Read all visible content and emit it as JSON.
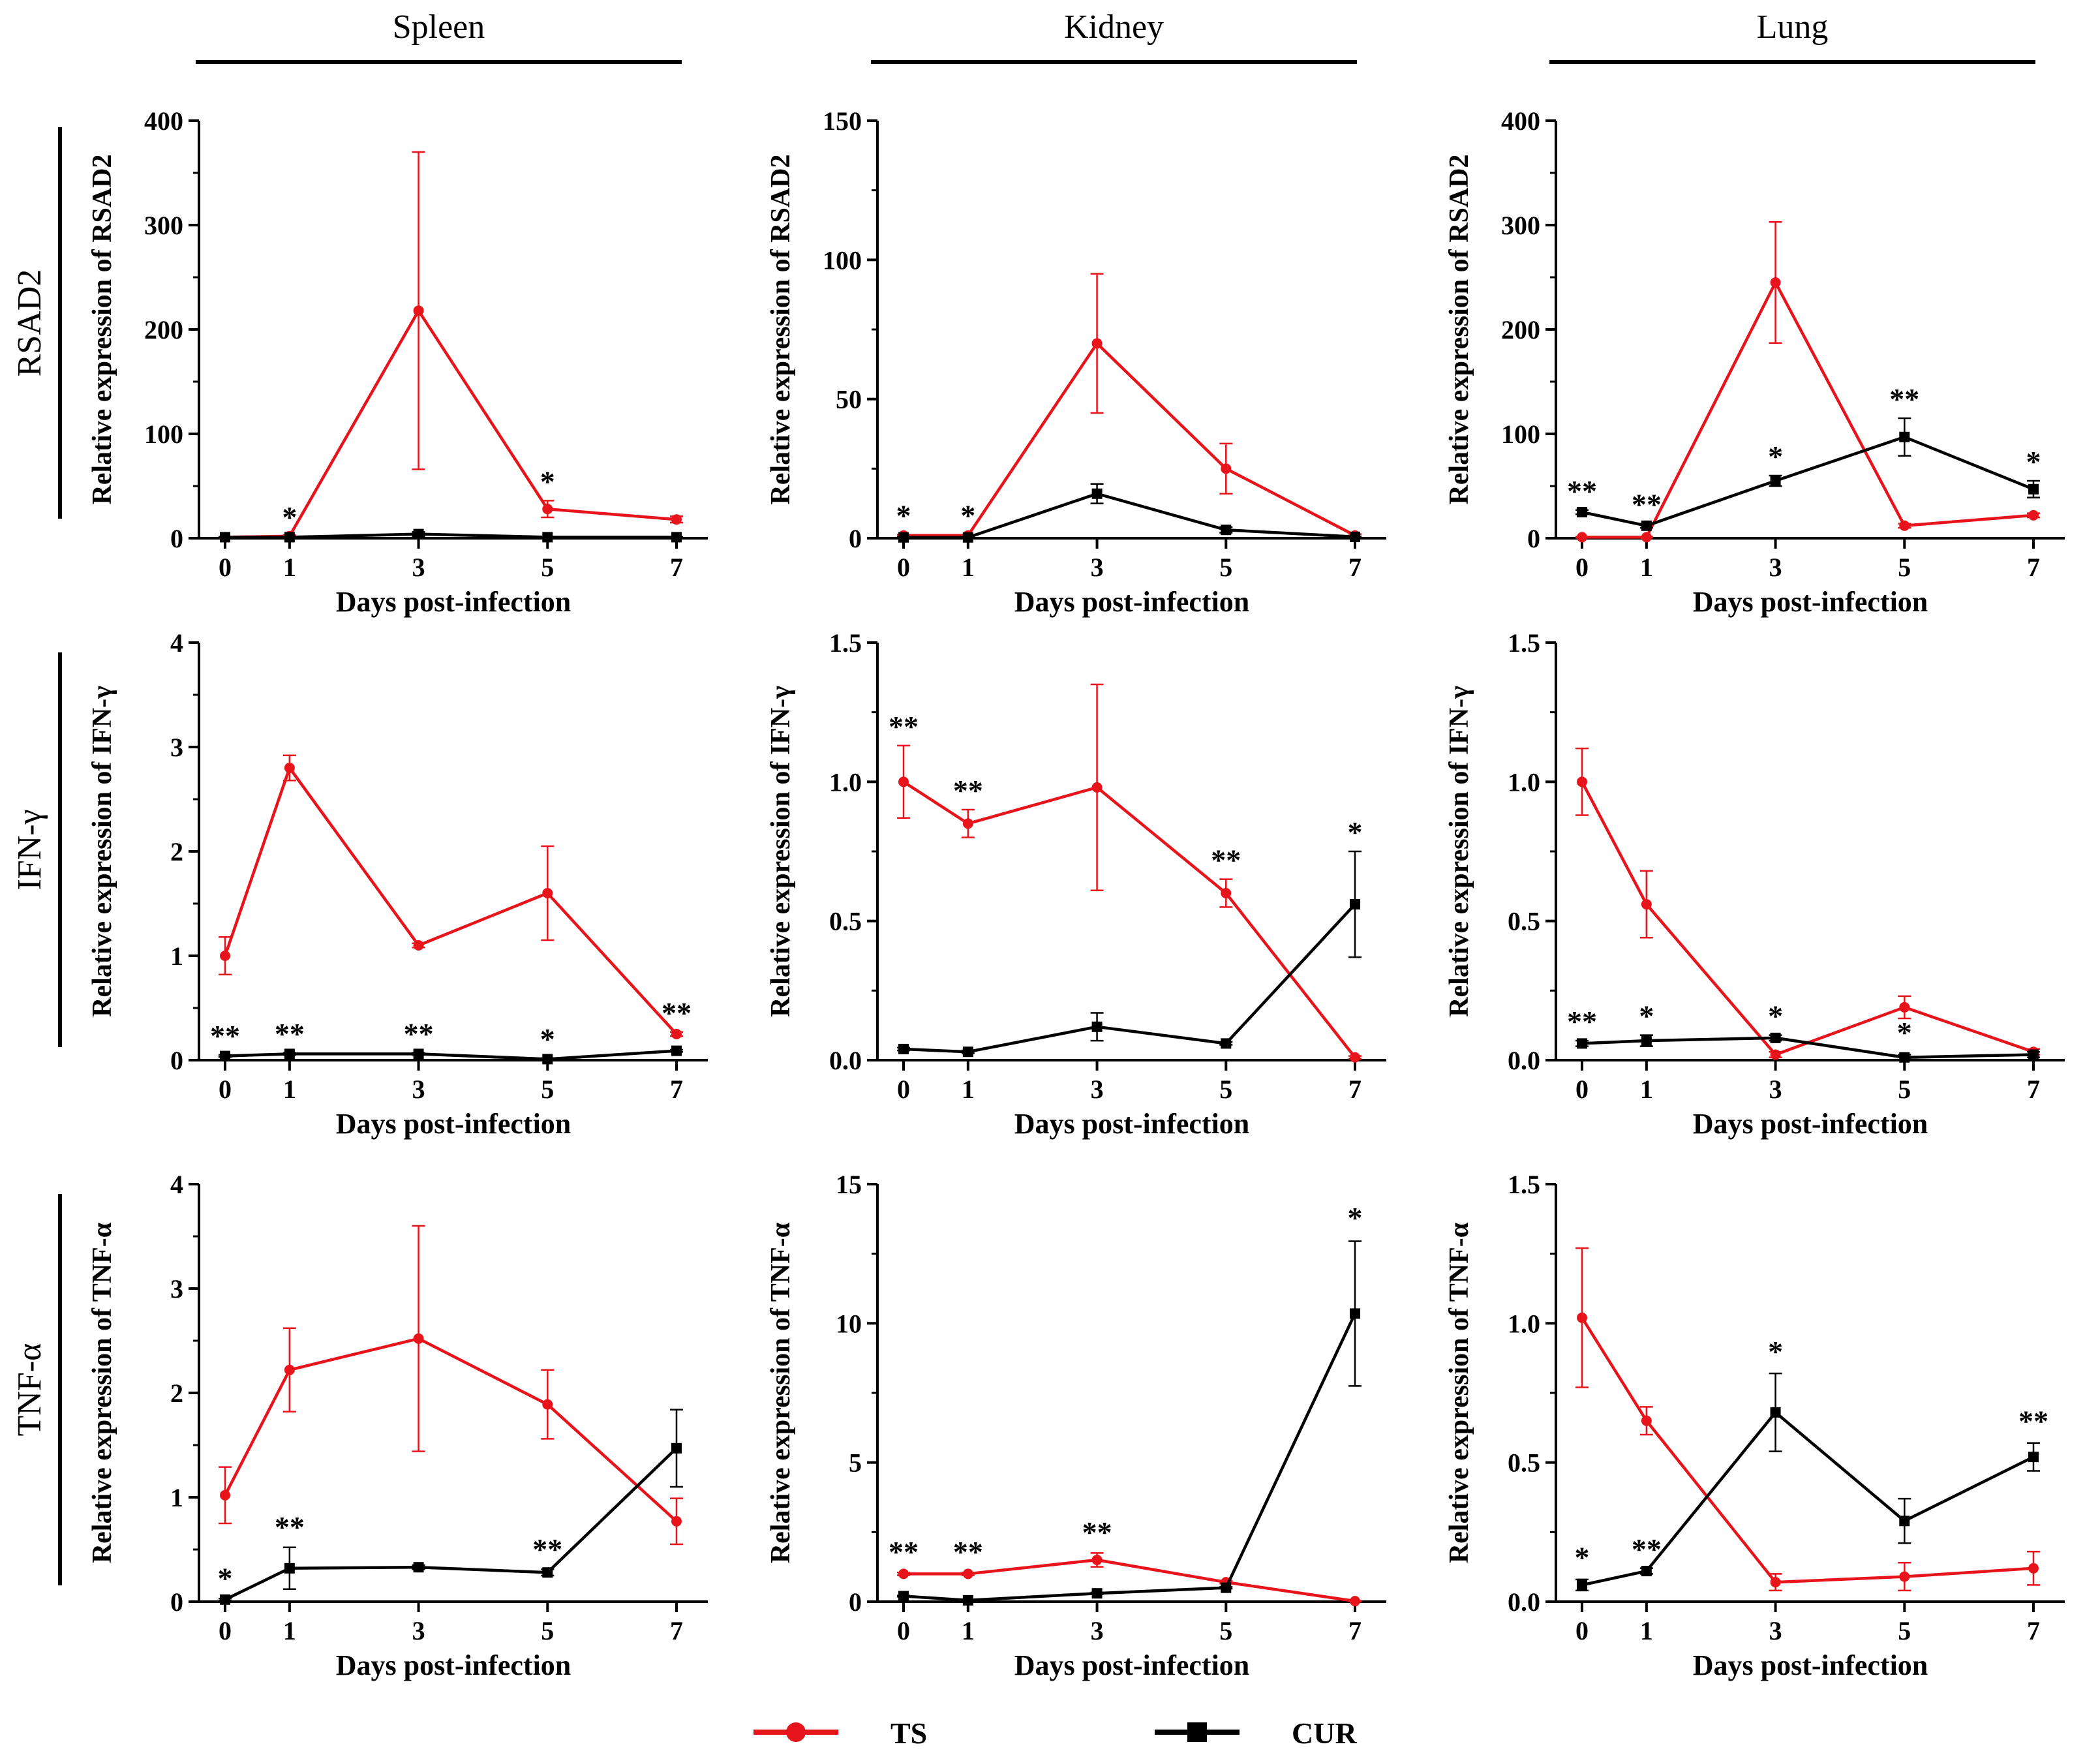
{
  "figure": {
    "columns": [
      {
        "key": "spleen",
        "label": "Spleen"
      },
      {
        "key": "kidney",
        "label": "Kidney"
      },
      {
        "key": "lung",
        "label": "Lung"
      }
    ],
    "rows": [
      {
        "key": "rsad2",
        "label": "RSAD2"
      },
      {
        "key": "ifng",
        "label": "IFN-γ"
      },
      {
        "key": "tnfa",
        "label": "TNF-α"
      }
    ],
    "x_label": "Days post-infection",
    "legend": [
      {
        "name": "TS",
        "color": "#e8141b",
        "marker": "circle"
      },
      {
        "name": "CUR",
        "color": "#000000",
        "marker": "square"
      }
    ]
  },
  "chart_data": [
    {
      "type": "line",
      "panel": "Spleen / RSAD2",
      "xlabel": "Days post-infection",
      "ylabel": "Relative expression of RSAD2",
      "x": [
        0,
        1,
        3,
        5,
        7
      ],
      "ylim": [
        0,
        400
      ],
      "yticks": [
        "0",
        "100",
        "200",
        "300",
        "400"
      ],
      "series": [
        {
          "name": "TS",
          "values": [
            1,
            2,
            218,
            28,
            18
          ],
          "errors": [
            0.5,
            1,
            152,
            8,
            3
          ]
        },
        {
          "name": "CUR",
          "values": [
            1,
            1,
            4,
            1,
            1
          ],
          "errors": [
            0.3,
            0.3,
            2,
            0.5,
            0.3
          ]
        }
      ],
      "annotations": [
        {
          "x": 1,
          "y": 2,
          "text": "*"
        },
        {
          "x": 5,
          "y": 36,
          "text": "*"
        }
      ]
    },
    {
      "type": "line",
      "panel": "Kidney / RSAD2",
      "xlabel": "Days post-infection",
      "ylabel": "Relative expression of RSAD2",
      "x": [
        0,
        1,
        3,
        5,
        7
      ],
      "ylim": [
        0,
        150
      ],
      "yticks": [
        "0",
        "50",
        "100",
        "150"
      ],
      "series": [
        {
          "name": "TS",
          "values": [
            1,
            1,
            70,
            25,
            1
          ],
          "errors": [
            0.3,
            0.3,
            25,
            9,
            0.5
          ]
        },
        {
          "name": "CUR",
          "values": [
            0.3,
            0.3,
            16,
            3,
            0.5
          ],
          "errors": [
            0.1,
            0.1,
            3.5,
            1,
            0.2
          ]
        }
      ],
      "annotations": [
        {
          "x": 0,
          "y": 1.3,
          "text": "*"
        },
        {
          "x": 1,
          "y": 1.3,
          "text": "*"
        }
      ]
    },
    {
      "type": "line",
      "panel": "Lung / RSAD2",
      "xlabel": "Days post-infection",
      "ylabel": "Relative expression of RSAD2",
      "x": [
        0,
        1,
        3,
        5,
        7
      ],
      "ylim": [
        0,
        400
      ],
      "yticks": [
        "0",
        "100",
        "200",
        "300",
        "400"
      ],
      "series": [
        {
          "name": "TS",
          "values": [
            1,
            1,
            245,
            12,
            22
          ],
          "errors": [
            0.5,
            0.5,
            58,
            2,
            2
          ]
        },
        {
          "name": "CUR",
          "values": [
            25,
            12,
            55,
            97,
            47
          ],
          "errors": [
            2,
            2,
            5,
            18,
            8
          ]
        }
      ],
      "annotations": [
        {
          "x": 0,
          "y": 27,
          "text": "**"
        },
        {
          "x": 1,
          "y": 14,
          "text": "**"
        },
        {
          "x": 3,
          "y": 60,
          "text": "*"
        },
        {
          "x": 5,
          "y": 115,
          "text": "**"
        },
        {
          "x": 7,
          "y": 55,
          "text": "*"
        }
      ]
    },
    {
      "type": "line",
      "panel": "Spleen / IFN-γ",
      "xlabel": "Days post-infection",
      "ylabel": "Relative expression of IFN-γ",
      "x": [
        0,
        1,
        3,
        5,
        7
      ],
      "ylim": [
        0,
        4
      ],
      "yticks": [
        "0",
        "1",
        "2",
        "3",
        "4"
      ],
      "series": [
        {
          "name": "TS",
          "values": [
            1.0,
            2.8,
            1.1,
            1.6,
            0.25
          ],
          "errors": [
            0.18,
            0.12,
            0.02,
            0.45,
            0.02
          ]
        },
        {
          "name": "CUR",
          "values": [
            0.04,
            0.06,
            0.06,
            0.01,
            0.09
          ],
          "errors": [
            0.01,
            0.01,
            0.01,
            0.01,
            0.01
          ]
        }
      ],
      "annotations": [
        {
          "x": 0,
          "y": 0.05,
          "text": "**"
        },
        {
          "x": 1,
          "y": 0.07,
          "text": "**"
        },
        {
          "x": 3,
          "y": 0.07,
          "text": "**"
        },
        {
          "x": 5,
          "y": 0.02,
          "text": "*"
        },
        {
          "x": 7,
          "y": 0.27,
          "text": "**"
        }
      ]
    },
    {
      "type": "line",
      "panel": "Kidney / IFN-γ",
      "xlabel": "Days post-infection",
      "ylabel": "Relative expression of IFN-γ",
      "x": [
        0,
        1,
        3,
        5,
        7
      ],
      "ylim": [
        0,
        1.5
      ],
      "yticks": [
        "0.0",
        "0.5",
        "1.0",
        "1.5"
      ],
      "series": [
        {
          "name": "TS",
          "values": [
            1.0,
            0.85,
            0.98,
            0.6,
            0.01
          ],
          "errors": [
            0.13,
            0.05,
            0.37,
            0.05,
            0.005
          ]
        },
        {
          "name": "CUR",
          "values": [
            0.04,
            0.03,
            0.12,
            0.06,
            0.56
          ],
          "errors": [
            0.005,
            0.005,
            0.05,
            0.005,
            0.19
          ]
        }
      ],
      "annotations": [
        {
          "x": 0,
          "y": 1.13,
          "text": "**"
        },
        {
          "x": 1,
          "y": 0.9,
          "text": "**"
        },
        {
          "x": 5,
          "y": 0.65,
          "text": "**"
        },
        {
          "x": 7,
          "y": 0.75,
          "text": "*"
        }
      ]
    },
    {
      "type": "line",
      "panel": "Lung / IFN-γ",
      "xlabel": "Days post-infection",
      "ylabel": "Relative expression of IFN-γ",
      "x": [
        0,
        1,
        3,
        5,
        7
      ],
      "ylim": [
        0,
        1.5
      ],
      "yticks": [
        "0.0",
        "0.5",
        "1.0",
        "1.5"
      ],
      "series": [
        {
          "name": "TS",
          "values": [
            1.0,
            0.56,
            0.02,
            0.19,
            0.03
          ],
          "errors": [
            0.12,
            0.12,
            0.01,
            0.04,
            0.01
          ]
        },
        {
          "name": "CUR",
          "values": [
            0.06,
            0.07,
            0.08,
            0.01,
            0.02
          ],
          "errors": [
            0.01,
            0.02,
            0.01,
            0.01,
            0.01
          ]
        }
      ],
      "annotations": [
        {
          "x": 0,
          "y": 0.07,
          "text": "**"
        },
        {
          "x": 1,
          "y": 0.09,
          "text": "*"
        },
        {
          "x": 3,
          "y": 0.09,
          "text": "*"
        },
        {
          "x": 5,
          "y": 0.03,
          "text": "*"
        }
      ]
    },
    {
      "type": "line",
      "panel": "Spleen / TNF-α",
      "xlabel": "Days post-infection",
      "ylabel": "Relative expression of TNF-α",
      "x": [
        0,
        1,
        3,
        5,
        7
      ],
      "ylim": [
        0,
        4
      ],
      "yticks": [
        "0",
        "1",
        "2",
        "3",
        "4"
      ],
      "series": [
        {
          "name": "TS",
          "values": [
            1.02,
            2.22,
            2.52,
            1.89,
            0.77
          ],
          "errors": [
            0.27,
            0.4,
            1.08,
            0.33,
            0.22
          ]
        },
        {
          "name": "CUR",
          "values": [
            0.02,
            0.32,
            0.33,
            0.28,
            1.47
          ],
          "errors": [
            0.01,
            0.2,
            0.02,
            0.03,
            0.37
          ]
        }
      ],
      "annotations": [
        {
          "x": 0,
          "y": 0.04,
          "text": "*"
        },
        {
          "x": 1,
          "y": 0.53,
          "text": "**"
        },
        {
          "x": 5,
          "y": 0.32,
          "text": "**"
        }
      ]
    },
    {
      "type": "line",
      "panel": "Kidney / TNF-α",
      "xlabel": "Days post-infection",
      "ylabel": "Relative expression of TNF-α",
      "x": [
        0,
        1,
        3,
        5,
        7
      ],
      "ylim": [
        0,
        15
      ],
      "yticks": [
        "0",
        "5",
        "10",
        "15"
      ],
      "series": [
        {
          "name": "TS",
          "values": [
            1.0,
            1.0,
            1.5,
            0.7,
            0.02
          ],
          "errors": [
            0.05,
            0.05,
            0.25,
            0.05,
            0.01
          ]
        },
        {
          "name": "CUR",
          "values": [
            0.2,
            0.05,
            0.3,
            0.5,
            10.35
          ],
          "errors": [
            0.02,
            0.02,
            0.03,
            0.03,
            2.6
          ]
        }
      ],
      "annotations": [
        {
          "x": 0,
          "y": 1.1,
          "text": "**"
        },
        {
          "x": 1,
          "y": 1.1,
          "text": "**"
        },
        {
          "x": 3,
          "y": 1.8,
          "text": "**"
        },
        {
          "x": 7,
          "y": 13.1,
          "text": "*"
        }
      ]
    },
    {
      "type": "line",
      "panel": "Lung / TNF-α",
      "xlabel": "Days post-infection",
      "ylabel": "Relative expression of TNF-α",
      "x": [
        0,
        1,
        3,
        5,
        7
      ],
      "ylim": [
        0,
        1.5
      ],
      "yticks": [
        "0.0",
        "0.5",
        "1.0",
        "1.5"
      ],
      "series": [
        {
          "name": "TS",
          "values": [
            1.02,
            0.65,
            0.07,
            0.09,
            0.12
          ],
          "errors": [
            0.25,
            0.05,
            0.03,
            0.05,
            0.06
          ]
        },
        {
          "name": "CUR",
          "values": [
            0.06,
            0.11,
            0.68,
            0.29,
            0.52
          ],
          "errors": [
            0.02,
            0.01,
            0.14,
            0.08,
            0.05
          ]
        }
      ],
      "annotations": [
        {
          "x": 0,
          "y": 0.09,
          "text": "*"
        },
        {
          "x": 1,
          "y": 0.12,
          "text": "**"
        },
        {
          "x": 3,
          "y": 0.83,
          "text": "*"
        },
        {
          "x": 7,
          "y": 0.58,
          "text": "**"
        }
      ]
    }
  ]
}
